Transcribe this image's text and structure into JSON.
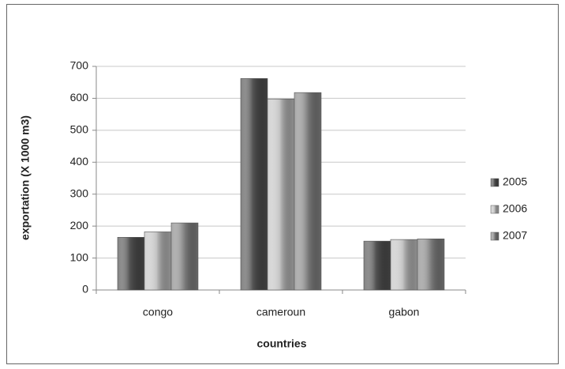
{
  "chart_data": {
    "type": "bar",
    "x_label": "countries",
    "y_label": "exportation (X 1000 m3)",
    "categories": [
      "congo",
      "cameroun",
      "gabon"
    ],
    "series": [
      {
        "name": "2005",
        "color": "#555555",
        "values": [
          165,
          662,
          153
        ]
      },
      {
        "name": "2006",
        "color": "#c4c4c4",
        "values": [
          182,
          598,
          158
        ]
      },
      {
        "name": "2007",
        "color": "#8a8a8a",
        "values": [
          210,
          618,
          160
        ]
      }
    ],
    "ylim": [
      0,
      700
    ],
    "yticks": [
      0,
      100,
      200,
      300,
      400,
      500,
      600,
      700
    ],
    "grid": true,
    "legend": "right"
  }
}
